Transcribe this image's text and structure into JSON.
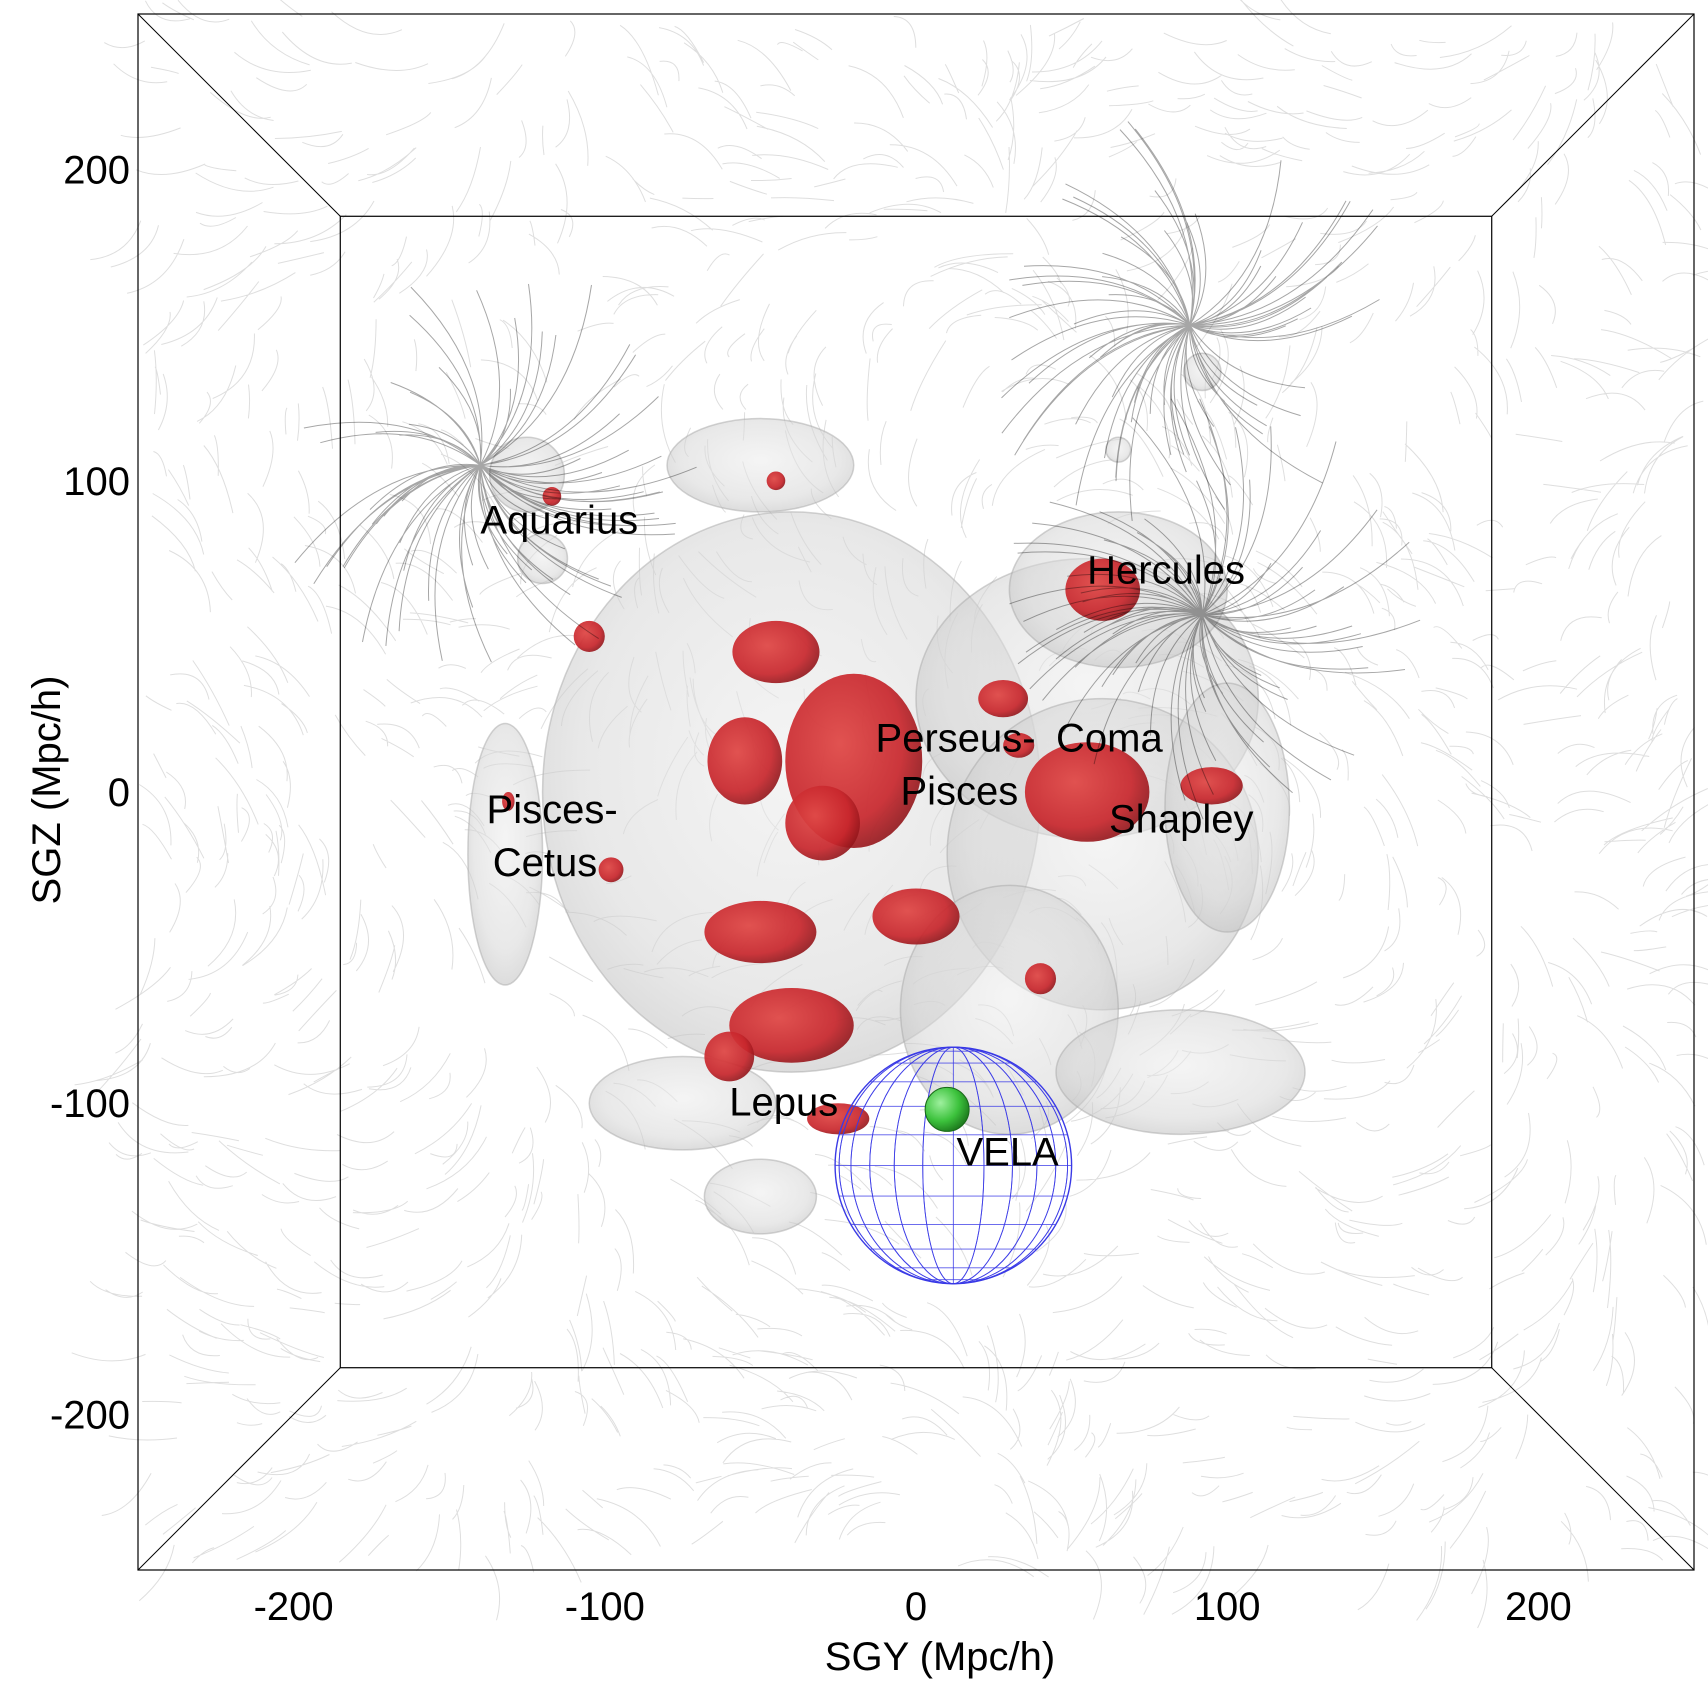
{
  "chart_data": {
    "type": "scatter",
    "title": "",
    "xlabel": "SGY (Mpc/h)",
    "ylabel": "SGZ (Mpc/h)",
    "xlim": [
      -250,
      250
    ],
    "ylim": [
      -250,
      250
    ],
    "x_ticks": [
      -200,
      -100,
      0,
      100,
      200
    ],
    "y_ticks": [
      200,
      100,
      0,
      -100,
      -200
    ],
    "grid": false,
    "legend": "none",
    "colors": {
      "overdensity_outer": "#d4d4d4",
      "overdensity_inner": "#c8262c",
      "sphere_wireframe": "#3a3ae6",
      "observer": "#3cc23c",
      "flow_lines": "#000000"
    },
    "labels": [
      {
        "text": "Aquarius",
        "x": -140,
        "y": 83
      },
      {
        "text": "Hercules",
        "x": 55,
        "y": 67
      },
      {
        "text": "Perseus-",
        "x": -13,
        "y": 13
      },
      {
        "text": "Pisces",
        "x": -5,
        "y": -4
      },
      {
        "text": "Coma",
        "x": 45,
        "y": 13
      },
      {
        "text": "Shapley",
        "x": 62,
        "y": -13
      },
      {
        "text": "Pisces-",
        "x": -138,
        "y": -10
      },
      {
        "text": "Cetus",
        "x": -136,
        "y": -27
      },
      {
        "text": "Lepus",
        "x": -60,
        "y": -104
      },
      {
        "text": "VELA",
        "x": 13,
        "y": -120
      }
    ],
    "observer": {
      "x": 10,
      "y": -102
    },
    "sphere": {
      "x": 12,
      "y": -120,
      "r": 38
    },
    "attractors": [
      {
        "x": -140,
        "y": 105
      },
      {
        "x": 88,
        "y": 150
      },
      {
        "x": 92,
        "y": 57
      }
    ],
    "red_blobs": [
      {
        "x": -20,
        "y": 10,
        "rx": 22,
        "ry": 28
      },
      {
        "x": -55,
        "y": 10,
        "rx": 12,
        "ry": 14
      },
      {
        "x": -45,
        "y": 45,
        "rx": 14,
        "ry": 10
      },
      {
        "x": -30,
        "y": -10,
        "rx": 12,
        "ry": 12
      },
      {
        "x": -50,
        "y": -45,
        "rx": 18,
        "ry": 10
      },
      {
        "x": -40,
        "y": -75,
        "rx": 20,
        "ry": 12
      },
      {
        "x": -60,
        "y": -85,
        "rx": 8,
        "ry": 8
      },
      {
        "x": 0,
        "y": -40,
        "rx": 14,
        "ry": 9
      },
      {
        "x": 60,
        "y": 65,
        "rx": 12,
        "ry": 10
      },
      {
        "x": 55,
        "y": 0,
        "rx": 20,
        "ry": 16
      },
      {
        "x": 28,
        "y": 30,
        "rx": 8,
        "ry": 6
      },
      {
        "x": 95,
        "y": 2,
        "rx": 10,
        "ry": 6
      },
      {
        "x": -105,
        "y": 50,
        "rx": 5,
        "ry": 5
      },
      {
        "x": -117,
        "y": 95,
        "rx": 3,
        "ry": 3
      },
      {
        "x": -45,
        "y": 100,
        "rx": 3,
        "ry": 3
      },
      {
        "x": -25,
        "y": -105,
        "rx": 10,
        "ry": 5
      },
      {
        "x": 40,
        "y": -60,
        "rx": 5,
        "ry": 5
      },
      {
        "x": -98,
        "y": -25,
        "rx": 4,
        "ry": 4
      },
      {
        "x": -131,
        "y": -3,
        "rx": 2,
        "ry": 3
      },
      {
        "x": 33,
        "y": 15,
        "rx": 5,
        "ry": 4
      }
    ],
    "grey_blobs": [
      {
        "x": -40,
        "y": 0,
        "rx": 80,
        "ry": 90
      },
      {
        "x": 55,
        "y": 30,
        "rx": 55,
        "ry": 45
      },
      {
        "x": 60,
        "y": -20,
        "rx": 50,
        "ry": 50
      },
      {
        "x": 30,
        "y": -70,
        "rx": 35,
        "ry": 40
      },
      {
        "x": -50,
        "y": 105,
        "rx": 30,
        "ry": 15
      },
      {
        "x": -125,
        "y": 102,
        "rx": 12,
        "ry": 12
      },
      {
        "x": -120,
        "y": 75,
        "rx": 8,
        "ry": 8
      },
      {
        "x": 92,
        "y": 135,
        "rx": 6,
        "ry": 6
      },
      {
        "x": -132,
        "y": -20,
        "rx": 12,
        "ry": 42
      },
      {
        "x": -75,
        "y": -100,
        "rx": 30,
        "ry": 15
      },
      {
        "x": -50,
        "y": -130,
        "rx": 18,
        "ry": 12
      },
      {
        "x": 85,
        "y": -90,
        "rx": 40,
        "ry": 20
      },
      {
        "x": 65,
        "y": 65,
        "rx": 35,
        "ry": 25
      },
      {
        "x": 100,
        "y": -5,
        "rx": 20,
        "ry": 40
      },
      {
        "x": 65,
        "y": 110,
        "rx": 4,
        "ry": 4
      }
    ]
  }
}
